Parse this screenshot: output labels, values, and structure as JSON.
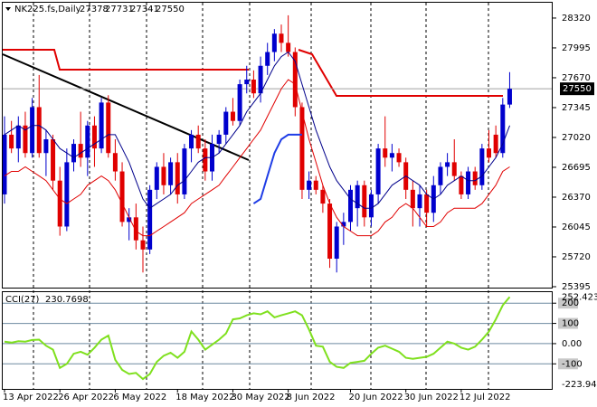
{
  "chart_data": [
    {
      "type": "candlestick",
      "title": "NK225.fs,Daily",
      "x": [
        "13 Apr 2022",
        null,
        null,
        null,
        null,
        null,
        null,
        null,
        "26 Apr 2022",
        null,
        null,
        null,
        null,
        null,
        null,
        null,
        "6 May 2022",
        null,
        null,
        null,
        null,
        null,
        null,
        null,
        null,
        "18 May 2022",
        null,
        null,
        null,
        null,
        null,
        null,
        null,
        "30 May 2022",
        null,
        null,
        null,
        null,
        null,
        null,
        null,
        "8 Jun 2022",
        null,
        null,
        null,
        null,
        null,
        null,
        null,
        null,
        "20 Jun 2022",
        null,
        null,
        null,
        null,
        null,
        null,
        null,
        "30 Jun 2022",
        null,
        null,
        null,
        null,
        null,
        null,
        null,
        "12 Jul 2022",
        null,
        null,
        null,
        null,
        null,
        null,
        null
      ],
      "open": [
        26400,
        27050,
        26900,
        27150,
        26850,
        27350,
        26850,
        27000,
        26550,
        26050,
        26750,
        26950,
        26800,
        27150,
        26900,
        27400,
        26850,
        26650,
        26100,
        26150,
        25900,
        25800,
        26450,
        26700,
        26500,
        26750,
        26400,
        26900,
        27050,
        26900,
        26650,
        26950,
        27050,
        27300,
        27200,
        27600,
        27650,
        27500,
        27800,
        27950,
        28150,
        28050,
        27950,
        27350,
        26450,
        26550,
        26450,
        26300,
        25700,
        26050,
        26100,
        26250,
        26500,
        26150,
        26400,
        26900,
        26800,
        26850,
        26750,
        26450,
        26250,
        26400,
        26200,
        26500,
        26700,
        26750,
        26600,
        26400,
        26650,
        26500,
        26900,
        27050,
        26850,
        27378
      ],
      "high": [
        27250,
        27200,
        27250,
        27300,
        27450,
        27700,
        27100,
        27050,
        26700,
        26900,
        27000,
        27300,
        27200,
        27250,
        27450,
        27480,
        27000,
        26750,
        26250,
        26300,
        26050,
        26500,
        26750,
        26850,
        26800,
        26850,
        26950,
        27100,
        27150,
        27000,
        27050,
        27100,
        27350,
        27450,
        27650,
        27800,
        27750,
        27900,
        28050,
        28200,
        28250,
        28350,
        28000,
        27400,
        26650,
        26600,
        26500,
        26350,
        26100,
        26200,
        26500,
        26550,
        26550,
        26450,
        26950,
        27250,
        26950,
        26900,
        26800,
        26550,
        26500,
        26450,
        26600,
        26750,
        26850,
        27000,
        26650,
        26700,
        26700,
        26950,
        27100,
        27150,
        27450,
        27731
      ],
      "low": [
        26300,
        26850,
        26750,
        26800,
        26800,
        26800,
        26600,
        26450,
        25950,
        26000,
        26650,
        26700,
        26600,
        26700,
        26850,
        26800,
        26550,
        26050,
        25900,
        25800,
        25550,
        25750,
        26350,
        26400,
        26400,
        26300,
        26350,
        26750,
        26850,
        26550,
        26550,
        26850,
        26950,
        27150,
        27150,
        27500,
        27450,
        27400,
        27700,
        27850,
        27950,
        27900,
        27250,
        26350,
        26350,
        26400,
        26200,
        25600,
        25550,
        25850,
        26000,
        26050,
        26050,
        26050,
        26300,
        26700,
        26650,
        26700,
        26350,
        26050,
        26050,
        26050,
        26100,
        26400,
        26600,
        26550,
        26350,
        26350,
        26450,
        26450,
        26750,
        26800,
        26800,
        27341
      ],
      "close": [
        27050,
        26900,
        27150,
        26850,
        27350,
        26850,
        27000,
        26550,
        26050,
        26750,
        26950,
        26800,
        27150,
        26900,
        27400,
        26850,
        26650,
        26100,
        26150,
        25900,
        25800,
        26450,
        26700,
        26500,
        26750,
        26400,
        26900,
        27050,
        26900,
        26650,
        26950,
        27050,
        27300,
        27200,
        27600,
        27650,
        27500,
        27800,
        27950,
        28150,
        28050,
        27950,
        27350,
        26450,
        26550,
        26450,
        26300,
        25700,
        26050,
        26100,
        26450,
        26500,
        26150,
        26400,
        26900,
        26800,
        26850,
        26750,
        26450,
        26250,
        26400,
        26200,
        26500,
        26700,
        26750,
        26600,
        26400,
        26650,
        26500,
        26900,
        26800,
        26850,
        27378,
        27550
      ],
      "up_color": "#0000cd",
      "down_color": "#e00000",
      "overlays": [
        {
          "color": "#00008b",
          "values": [
            27050,
            27100,
            27150,
            27100,
            27150,
            27150,
            27100,
            27000,
            26900,
            26850,
            26800,
            26850,
            26900,
            26950,
            27000,
            27050,
            27050,
            26900,
            26750,
            26550,
            26350,
            26250,
            26300,
            26350,
            26400,
            26500,
            26550,
            26650,
            26750,
            26800,
            26800,
            26850,
            26950,
            27050,
            27150,
            27300,
            27400,
            27500,
            27650,
            27800,
            27900,
            27950,
            27850,
            27600,
            27350,
            27100,
            26900,
            26700,
            26550,
            26450,
            26350,
            26300,
            26250,
            26250,
            26300,
            26400,
            26500,
            26550,
            26600,
            26550,
            26500,
            26400,
            26350,
            26400,
            26500,
            26550,
            26600,
            26550,
            26550,
            26600,
            26700,
            26800,
            26950,
            27150
          ]
        },
        {
          "color": "#e00000",
          "values": [
            26600,
            26650,
            26650,
            26700,
            26650,
            26600,
            26550,
            26450,
            26350,
            26300,
            26350,
            26400,
            26500,
            26550,
            26600,
            26550,
            26450,
            26300,
            26150,
            26000,
            25950,
            25950,
            26000,
            26050,
            26100,
            26150,
            26200,
            26300,
            26350,
            26400,
            26450,
            26500,
            26600,
            26700,
            26800,
            26900,
            27000,
            27100,
            27250,
            27400,
            27550,
            27650,
            27600,
            27300,
            27000,
            26750,
            26500,
            26300,
            26150,
            26050,
            26000,
            25950,
            25950,
            25950,
            26000,
            26100,
            26150,
            26250,
            26300,
            26250,
            26150,
            26050,
            26050,
            26100,
            26200,
            26250,
            26250,
            26250,
            26250,
            26300,
            26400,
            26500,
            26650,
            26700
          ]
        },
        {
          "color": "#1e3ce6",
          "width": 2,
          "values": [
            null,
            null,
            null,
            null,
            null,
            null,
            null,
            null,
            null,
            null,
            null,
            null,
            null,
            null,
            null,
            null,
            null,
            null,
            null,
            null,
            null,
            null,
            null,
            null,
            null,
            null,
            null,
            null,
            null,
            null,
            null,
            null,
            null,
            null,
            null,
            null,
            26300,
            26350,
            26600,
            26850,
            27000,
            27050,
            27050,
            27050,
            null,
            null,
            null,
            null,
            null,
            null,
            null,
            null,
            null,
            null,
            null,
            null,
            null,
            null,
            null,
            null,
            null,
            null,
            null,
            null,
            null,
            null,
            null,
            null,
            null,
            null,
            null,
            null,
            null,
            null
          ]
        }
      ],
      "ylim": [
        25385,
        28487
      ],
      "yticks": [
        25395,
        25720,
        26045,
        26370,
        26695,
        27020,
        27345,
        27670,
        27995,
        28320
      ]
    },
    {
      "type": "line",
      "title": "CCI(27)",
      "color": "#7fe01e",
      "values": [
        10,
        5,
        12,
        10,
        18,
        20,
        -10,
        -30,
        -120,
        -100,
        -50,
        -40,
        -55,
        -20,
        20,
        40,
        -80,
        -130,
        -150,
        -145,
        -175,
        -150,
        -90,
        -60,
        -45,
        -70,
        -40,
        60,
        20,
        -30,
        -5,
        20,
        50,
        120,
        125,
        140,
        150,
        145,
        160,
        130,
        140,
        150,
        160,
        140,
        70,
        -10,
        -15,
        -90,
        -115,
        -120,
        -95,
        -90,
        -85,
        -50,
        -20,
        -10,
        -25,
        -40,
        -70,
        -75,
        -70,
        -65,
        -50,
        -20,
        10,
        0,
        -20,
        -30,
        -15,
        20,
        60,
        120,
        190,
        230.7698
      ],
      "ylim": [
        -223.949,
        252.4231
      ],
      "yticks": [
        -100,
        {
          "value": 0,
          "label": "0.00"
        },
        100,
        200
      ]
    }
  ]
}
